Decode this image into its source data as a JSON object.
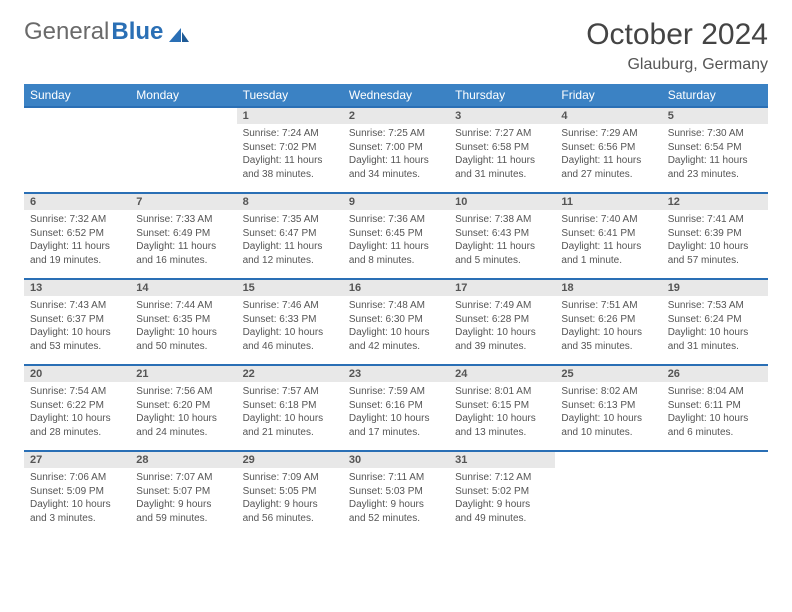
{
  "logo": {
    "text1": "General",
    "text2": "Blue"
  },
  "title": "October 2024",
  "location": "Glauburg, Germany",
  "colors": {
    "header_bg": "#3b82c4",
    "header_text": "#ffffff",
    "border": "#2a6fb5",
    "daynum_bg": "#e8e8e8",
    "text": "#555555"
  },
  "day_names": [
    "Sunday",
    "Monday",
    "Tuesday",
    "Wednesday",
    "Thursday",
    "Friday",
    "Saturday"
  ],
  "weeks": [
    [
      {
        "n": "",
        "sr": "",
        "ss": "",
        "dl": ""
      },
      {
        "n": "",
        "sr": "",
        "ss": "",
        "dl": ""
      },
      {
        "n": "1",
        "sr": "Sunrise: 7:24 AM",
        "ss": "Sunset: 7:02 PM",
        "dl": "Daylight: 11 hours and 38 minutes."
      },
      {
        "n": "2",
        "sr": "Sunrise: 7:25 AM",
        "ss": "Sunset: 7:00 PM",
        "dl": "Daylight: 11 hours and 34 minutes."
      },
      {
        "n": "3",
        "sr": "Sunrise: 7:27 AM",
        "ss": "Sunset: 6:58 PM",
        "dl": "Daylight: 11 hours and 31 minutes."
      },
      {
        "n": "4",
        "sr": "Sunrise: 7:29 AM",
        "ss": "Sunset: 6:56 PM",
        "dl": "Daylight: 11 hours and 27 minutes."
      },
      {
        "n": "5",
        "sr": "Sunrise: 7:30 AM",
        "ss": "Sunset: 6:54 PM",
        "dl": "Daylight: 11 hours and 23 minutes."
      }
    ],
    [
      {
        "n": "6",
        "sr": "Sunrise: 7:32 AM",
        "ss": "Sunset: 6:52 PM",
        "dl": "Daylight: 11 hours and 19 minutes."
      },
      {
        "n": "7",
        "sr": "Sunrise: 7:33 AM",
        "ss": "Sunset: 6:49 PM",
        "dl": "Daylight: 11 hours and 16 minutes."
      },
      {
        "n": "8",
        "sr": "Sunrise: 7:35 AM",
        "ss": "Sunset: 6:47 PM",
        "dl": "Daylight: 11 hours and 12 minutes."
      },
      {
        "n": "9",
        "sr": "Sunrise: 7:36 AM",
        "ss": "Sunset: 6:45 PM",
        "dl": "Daylight: 11 hours and 8 minutes."
      },
      {
        "n": "10",
        "sr": "Sunrise: 7:38 AM",
        "ss": "Sunset: 6:43 PM",
        "dl": "Daylight: 11 hours and 5 minutes."
      },
      {
        "n": "11",
        "sr": "Sunrise: 7:40 AM",
        "ss": "Sunset: 6:41 PM",
        "dl": "Daylight: 11 hours and 1 minute."
      },
      {
        "n": "12",
        "sr": "Sunrise: 7:41 AM",
        "ss": "Sunset: 6:39 PM",
        "dl": "Daylight: 10 hours and 57 minutes."
      }
    ],
    [
      {
        "n": "13",
        "sr": "Sunrise: 7:43 AM",
        "ss": "Sunset: 6:37 PM",
        "dl": "Daylight: 10 hours and 53 minutes."
      },
      {
        "n": "14",
        "sr": "Sunrise: 7:44 AM",
        "ss": "Sunset: 6:35 PM",
        "dl": "Daylight: 10 hours and 50 minutes."
      },
      {
        "n": "15",
        "sr": "Sunrise: 7:46 AM",
        "ss": "Sunset: 6:33 PM",
        "dl": "Daylight: 10 hours and 46 minutes."
      },
      {
        "n": "16",
        "sr": "Sunrise: 7:48 AM",
        "ss": "Sunset: 6:30 PM",
        "dl": "Daylight: 10 hours and 42 minutes."
      },
      {
        "n": "17",
        "sr": "Sunrise: 7:49 AM",
        "ss": "Sunset: 6:28 PM",
        "dl": "Daylight: 10 hours and 39 minutes."
      },
      {
        "n": "18",
        "sr": "Sunrise: 7:51 AM",
        "ss": "Sunset: 6:26 PM",
        "dl": "Daylight: 10 hours and 35 minutes."
      },
      {
        "n": "19",
        "sr": "Sunrise: 7:53 AM",
        "ss": "Sunset: 6:24 PM",
        "dl": "Daylight: 10 hours and 31 minutes."
      }
    ],
    [
      {
        "n": "20",
        "sr": "Sunrise: 7:54 AM",
        "ss": "Sunset: 6:22 PM",
        "dl": "Daylight: 10 hours and 28 minutes."
      },
      {
        "n": "21",
        "sr": "Sunrise: 7:56 AM",
        "ss": "Sunset: 6:20 PM",
        "dl": "Daylight: 10 hours and 24 minutes."
      },
      {
        "n": "22",
        "sr": "Sunrise: 7:57 AM",
        "ss": "Sunset: 6:18 PM",
        "dl": "Daylight: 10 hours and 21 minutes."
      },
      {
        "n": "23",
        "sr": "Sunrise: 7:59 AM",
        "ss": "Sunset: 6:16 PM",
        "dl": "Daylight: 10 hours and 17 minutes."
      },
      {
        "n": "24",
        "sr": "Sunrise: 8:01 AM",
        "ss": "Sunset: 6:15 PM",
        "dl": "Daylight: 10 hours and 13 minutes."
      },
      {
        "n": "25",
        "sr": "Sunrise: 8:02 AM",
        "ss": "Sunset: 6:13 PM",
        "dl": "Daylight: 10 hours and 10 minutes."
      },
      {
        "n": "26",
        "sr": "Sunrise: 8:04 AM",
        "ss": "Sunset: 6:11 PM",
        "dl": "Daylight: 10 hours and 6 minutes."
      }
    ],
    [
      {
        "n": "27",
        "sr": "Sunrise: 7:06 AM",
        "ss": "Sunset: 5:09 PM",
        "dl": "Daylight: 10 hours and 3 minutes."
      },
      {
        "n": "28",
        "sr": "Sunrise: 7:07 AM",
        "ss": "Sunset: 5:07 PM",
        "dl": "Daylight: 9 hours and 59 minutes."
      },
      {
        "n": "29",
        "sr": "Sunrise: 7:09 AM",
        "ss": "Sunset: 5:05 PM",
        "dl": "Daylight: 9 hours and 56 minutes."
      },
      {
        "n": "30",
        "sr": "Sunrise: 7:11 AM",
        "ss": "Sunset: 5:03 PM",
        "dl": "Daylight: 9 hours and 52 minutes."
      },
      {
        "n": "31",
        "sr": "Sunrise: 7:12 AM",
        "ss": "Sunset: 5:02 PM",
        "dl": "Daylight: 9 hours and 49 minutes."
      },
      {
        "n": "",
        "sr": "",
        "ss": "",
        "dl": ""
      },
      {
        "n": "",
        "sr": "",
        "ss": "",
        "dl": ""
      }
    ]
  ]
}
